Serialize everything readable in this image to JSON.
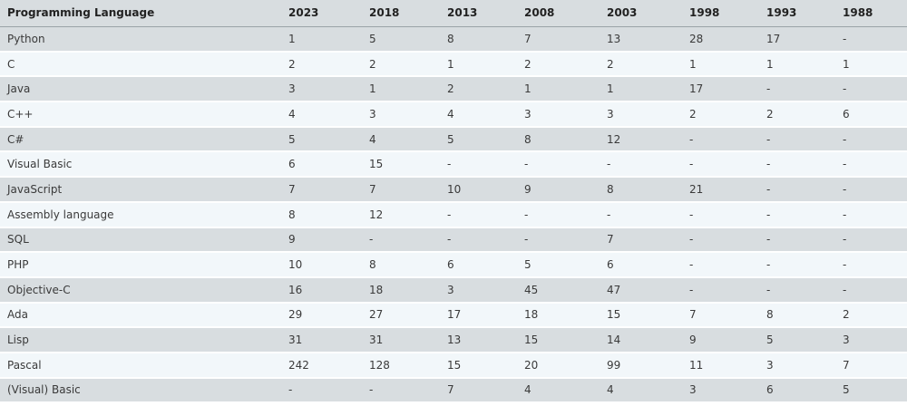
{
  "table": {
    "headers": [
      "Programming Language",
      "2023",
      "2018",
      "2013",
      "2008",
      "2003",
      "1998",
      "1993",
      "1988"
    ],
    "rows": [
      [
        "Python",
        "1",
        "5",
        "8",
        "7",
        "13",
        "28",
        "17",
        "-"
      ],
      [
        "C",
        "2",
        "2",
        "1",
        "2",
        "2",
        "1",
        "1",
        "1"
      ],
      [
        "Java",
        "3",
        "1",
        "2",
        "1",
        "1",
        "17",
        "-",
        "-"
      ],
      [
        "C++",
        "4",
        "3",
        "4",
        "3",
        "3",
        "2",
        "2",
        "6"
      ],
      [
        "C#",
        "5",
        "4",
        "5",
        "8",
        "12",
        "-",
        "-",
        "-"
      ],
      [
        "Visual Basic",
        "6",
        "15",
        "-",
        "-",
        "-",
        "-",
        "-",
        "-"
      ],
      [
        "JavaScript",
        "7",
        "7",
        "10",
        "9",
        "8",
        "21",
        "-",
        "-"
      ],
      [
        "Assembly language",
        "8",
        "12",
        "-",
        "-",
        "-",
        "-",
        "-",
        "-"
      ],
      [
        "SQL",
        "9",
        "-",
        "-",
        "-",
        "7",
        "-",
        "-",
        "-"
      ],
      [
        "PHP",
        "10",
        "8",
        "6",
        "5",
        "6",
        "-",
        "-",
        "-"
      ],
      [
        "Objective-C",
        "16",
        "18",
        "3",
        "45",
        "47",
        "-",
        "-",
        "-"
      ],
      [
        "Ada",
        "29",
        "27",
        "17",
        "18",
        "15",
        "7",
        "8",
        "2"
      ],
      [
        "Lisp",
        "31",
        "31",
        "13",
        "15",
        "14",
        "9",
        "5",
        "3"
      ],
      [
        "Pascal",
        "242",
        "128",
        "15",
        "20",
        "99",
        "11",
        "3",
        "7"
      ],
      [
        "(Visual) Basic",
        "-",
        "-",
        "7",
        "4",
        "4",
        "3",
        "6",
        "5"
      ]
    ]
  }
}
